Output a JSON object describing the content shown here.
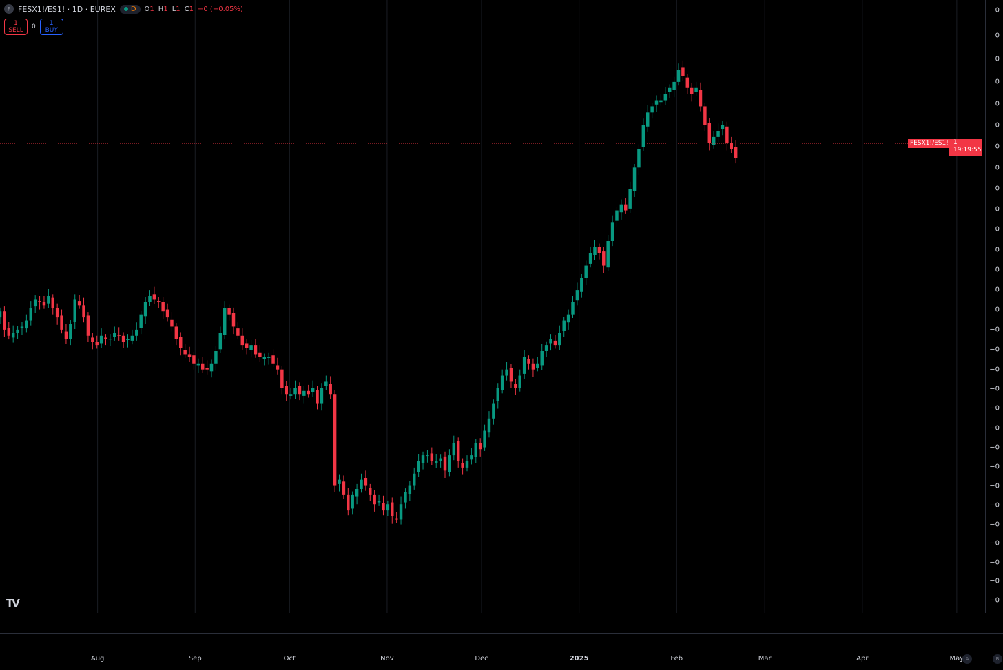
{
  "legend": {
    "icon_letter": "F",
    "title": "FESX1!/ES1! · 1D · EUREX",
    "interval_badge": "D",
    "open_label": "O",
    "open_value": "1",
    "high_label": "H",
    "high_value": "1",
    "low_label": "L",
    "low_value": "1",
    "close_label": "C",
    "close_value": "1",
    "change": "−0 (−0.05%)"
  },
  "trade_panel": {
    "sell_price": "1",
    "sell_label": "SELL",
    "spread": "0",
    "buy_price": "1",
    "buy_label": "BUY"
  },
  "price_label": {
    "symbol": "FESX1!/ES1!",
    "value": "1",
    "countdown": "19:19:55"
  },
  "logo_text": "TV",
  "corner_buttons": [
    "A",
    "B"
  ],
  "colors": {
    "up": "#089981",
    "down": "#f23645",
    "background": "#000000",
    "grid": "#1a1d24",
    "current_price_line": "#f23645"
  },
  "chart_data": {
    "type": "candlestick",
    "interval": "1D",
    "x_range": [
      "2024-07-01",
      "2025-05-10"
    ],
    "y_range": [
      -80,
      100
    ],
    "price_scale": "log",
    "y_tick_labels": [
      "0",
      "0",
      "0",
      "0",
      "0",
      "0",
      "0",
      "0",
      "0",
      "0",
      "0",
      "0",
      "0",
      "0",
      "0",
      "−0",
      "−0",
      "−0",
      "−0",
      "−0",
      "−0",
      "−0",
      "−0",
      "−0",
      "−0",
      "−0",
      "−0",
      "−0",
      "−0",
      "−0"
    ],
    "x_ticks": [
      {
        "date": "2024-08-01",
        "label": "Aug",
        "bold": false
      },
      {
        "date": "2024-09-01",
        "label": "Sep",
        "bold": false
      },
      {
        "date": "2024-10-01",
        "label": "Oct",
        "bold": false
      },
      {
        "date": "2024-11-01",
        "label": "Nov",
        "bold": false
      },
      {
        "date": "2024-12-01",
        "label": "Dec",
        "bold": false
      },
      {
        "date": "2025-01-01",
        "label": "2025",
        "bold": true
      },
      {
        "date": "2025-02-01",
        "label": "Feb",
        "bold": false
      },
      {
        "date": "2025-03-01",
        "label": "Mar",
        "bold": false
      },
      {
        "date": "2025-04-01",
        "label": "Apr",
        "bold": false
      },
      {
        "date": "2025-05-01",
        "label": "May",
        "bold": false
      }
    ],
    "start_date": "2024-07-01",
    "bar_spacing_days": 1.4,
    "closes": [
      5,
      -1,
      -3,
      -2,
      -1,
      0,
      2,
      6,
      9,
      8,
      7,
      10,
      6,
      3,
      -1,
      -4,
      1,
      9,
      7,
      3,
      -3,
      -5,
      -6,
      -3,
      -4,
      -4,
      -2,
      -3,
      -5,
      -4,
      -3,
      -1,
      4,
      8,
      10,
      9,
      8,
      5,
      3,
      0,
      -4,
      -7,
      -9,
      -10,
      -12,
      -12,
      -14,
      -14,
      -12,
      -8,
      -2,
      6,
      4,
      0,
      -3,
      -6,
      -7,
      -6,
      -9,
      -10,
      -10,
      -10,
      -12,
      -14,
      -20,
      -22,
      -22,
      -20,
      -22,
      -21,
      -22,
      -20,
      -25,
      -20,
      -18,
      -22,
      -52,
      -50,
      -55,
      -60,
      -55,
      -53,
      -50,
      -52,
      -55,
      -58,
      -57,
      -60,
      -58,
      -62,
      -63,
      -58,
      -54,
      -52,
      -48,
      -44,
      -42,
      -42,
      -44,
      -44,
      -43,
      -47,
      -42,
      -38,
      -44,
      -46,
      -44,
      -42,
      -38,
      -40,
      -34,
      -30,
      -25,
      -20,
      -16,
      -14,
      -18,
      -20,
      -16,
      -10,
      -12,
      -14,
      -12,
      -8,
      -6,
      -4,
      -6,
      -2,
      2,
      4,
      8,
      12,
      16,
      20,
      24,
      26,
      24,
      20,
      28,
      34,
      38,
      40,
      38,
      45,
      52,
      58,
      66,
      70,
      72,
      74,
      74,
      76,
      78,
      80,
      84,
      82,
      78,
      76,
      78,
      72,
      66,
      60,
      62,
      64,
      66,
      60,
      58,
      55
    ],
    "last_price_date": "2025-04-02"
  }
}
